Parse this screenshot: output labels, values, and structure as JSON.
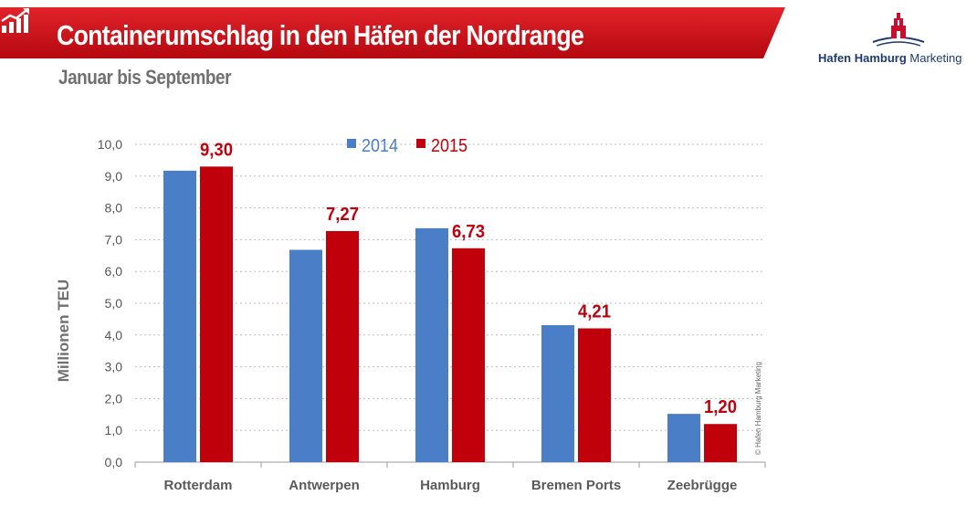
{
  "header": {
    "title": "Containerumschlag in den Häfen der Nordrange",
    "subtitle": "Januar bis September",
    "banner_color": "#d0121b",
    "icon": "chart-growth-icon"
  },
  "logo": {
    "emblem": "hamburg-castle-icon",
    "text_bold": "Hafen Hamburg",
    "text_light": "Marketing",
    "color": "#1f3a6e"
  },
  "copyright": "© Hafen Hamburg Marketing",
  "chart_data": {
    "type": "bar",
    "categories": [
      "Rotterdam",
      "Antwerpen",
      "Hamburg",
      "Bremen Ports",
      "Zeebrügge"
    ],
    "series": [
      {
        "name": "2014",
        "color": "#4a7ec6",
        "values": [
          9.17,
          6.68,
          7.36,
          4.31,
          1.52
        ]
      },
      {
        "name": "2015",
        "color": "#c0000b",
        "values": [
          9.3,
          7.27,
          6.73,
          4.21,
          1.2
        ]
      }
    ],
    "data_labels": [
      "9,30",
      "7,27",
      "6,73",
      "4,21",
      "1,20"
    ],
    "ylabel": "Millionen TEU",
    "ylim": [
      0,
      10
    ],
    "yticks": [
      "0,0",
      "1,0",
      "2,0",
      "3,0",
      "4,0",
      "5,0",
      "6,0",
      "7,0",
      "8,0",
      "9,0",
      "10,0"
    ],
    "grid": true,
    "legend_position": "top-center"
  }
}
